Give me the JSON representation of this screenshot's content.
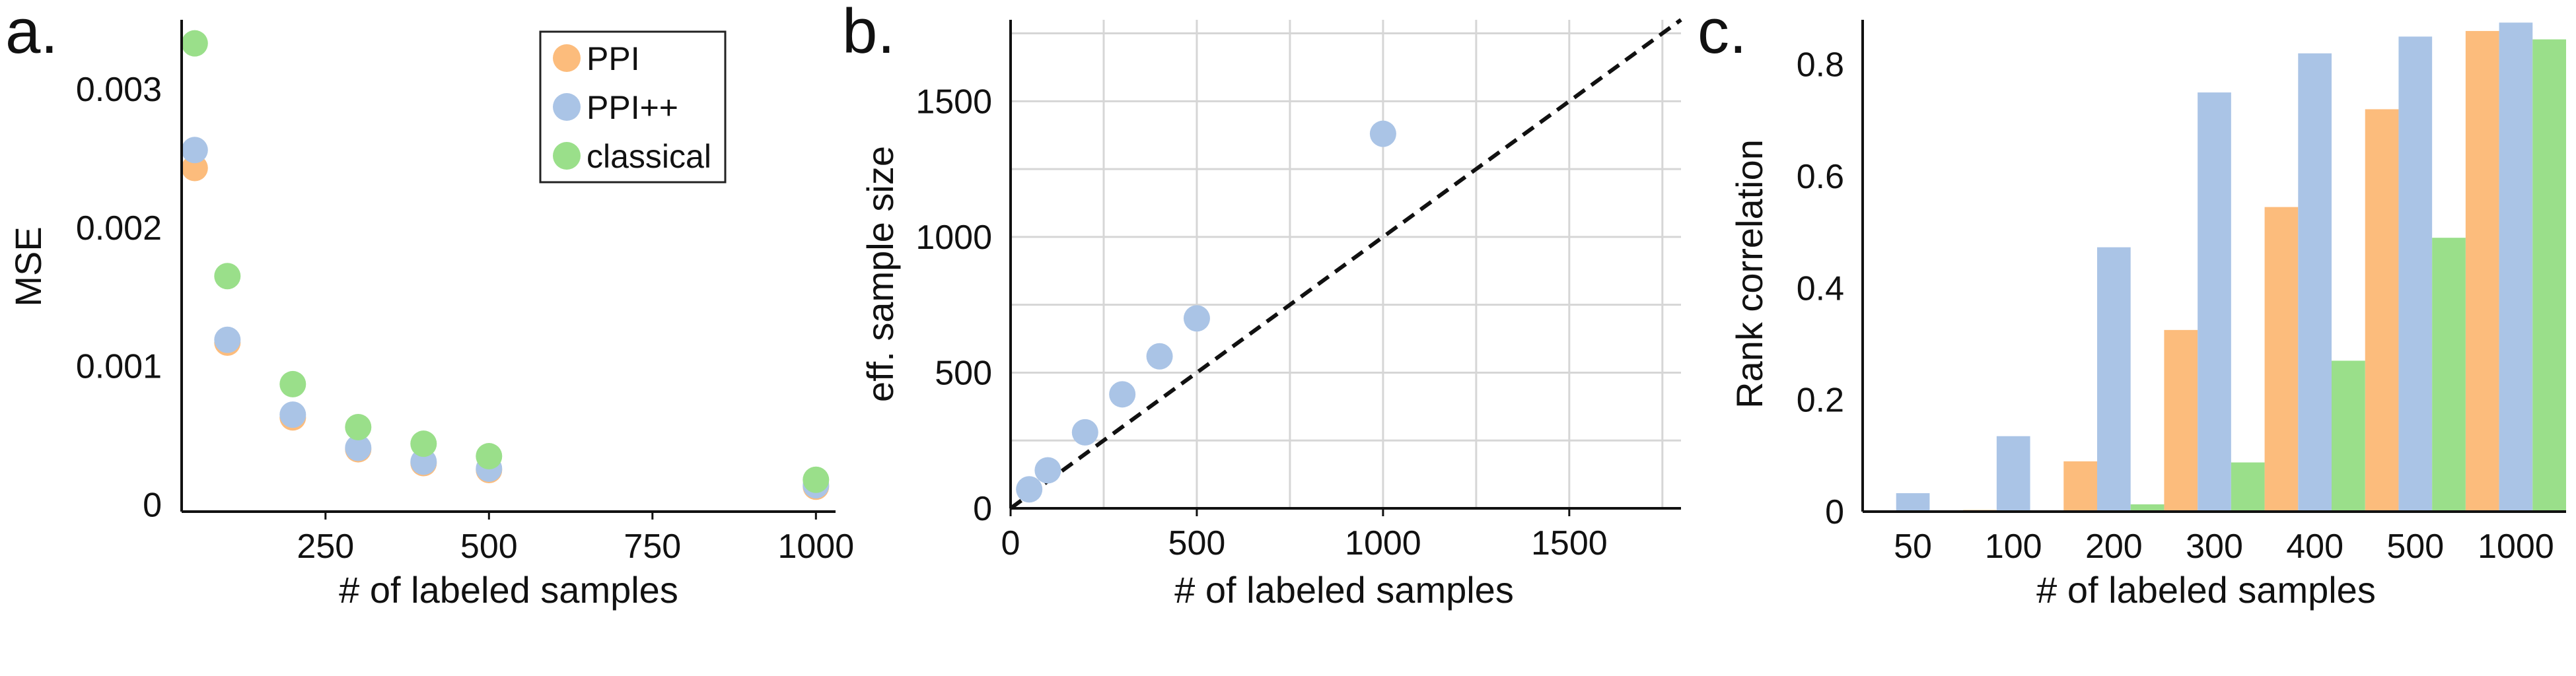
{
  "panels": {
    "a": {
      "letter": "a.",
      "xlabel": "# of labeled samples",
      "ylabel": "MSE"
    },
    "b": {
      "letter": "b.",
      "xlabel": "# of labeled samples",
      "ylabel": "eff. sample size"
    },
    "c": {
      "letter": "c.",
      "xlabel": "# of labeled samples",
      "ylabel": "Rank correlation"
    }
  },
  "legend": [
    {
      "label": "PPI",
      "color": "#fcbc7c"
    },
    {
      "label": "PPI++",
      "color": "#aac4e6"
    },
    {
      "label": "classical",
      "color": "#9adf8a"
    }
  ],
  "chart_data": [
    {
      "type": "scatter",
      "panel": "a",
      "xlabel": "# of labeled samples",
      "ylabel": "MSE",
      "xlim": [
        30,
        1030
      ],
      "ylim": [
        -5e-05,
        0.0035
      ],
      "xticks": [
        250,
        500,
        750,
        1000
      ],
      "yticks": [
        0,
        0.001,
        0.002,
        0.003
      ],
      "ytick_labels": [
        "0",
        "0.001",
        "0.002",
        "0.003"
      ],
      "legend_position": "top-right",
      "series": [
        {
          "name": "PPI",
          "color": "#fcbc7c",
          "x": [
            50,
            100,
            200,
            300,
            400,
            500,
            1000
          ],
          "y": [
            0.00243,
            0.00117,
            0.00063,
            0.0004,
            0.0003,
            0.00025,
            0.00013
          ]
        },
        {
          "name": "PPI++",
          "color": "#aac4e6",
          "x": [
            50,
            100,
            200,
            300,
            400,
            500,
            1000
          ],
          "y": [
            0.00256,
            0.00119,
            0.00065,
            0.00041,
            0.00031,
            0.00026,
            0.00014
          ]
        },
        {
          "name": "classical",
          "color": "#9adf8a",
          "x": [
            50,
            100,
            200,
            300,
            400,
            500,
            1000
          ],
          "y": [
            0.00333,
            0.00165,
            0.00087,
            0.00056,
            0.00044,
            0.00035,
            0.00018
          ]
        }
      ]
    },
    {
      "type": "scatter",
      "panel": "b",
      "xlabel": "# of labeled samples",
      "ylabel": "eff. sample size",
      "xlim": [
        0,
        1800
      ],
      "ylim": [
        0,
        1800
      ],
      "xticks": [
        0,
        500,
        1000,
        1500
      ],
      "yticks": [
        0,
        500,
        1000,
        1500
      ],
      "grid": true,
      "reference_line": "y = x (dashed)",
      "series": [
        {
          "name": "PPI++",
          "color": "#aac4e6",
          "x": [
            50,
            100,
            200,
            300,
            400,
            500,
            1000
          ],
          "y": [
            70,
            140,
            280,
            420,
            560,
            700,
            1380
          ]
        }
      ]
    },
    {
      "type": "bar",
      "panel": "c",
      "xlabel": "# of labeled samples",
      "ylabel": "Rank correlation",
      "categories": [
        "50",
        "100",
        "200",
        "300",
        "400",
        "500",
        "1000"
      ],
      "ylim": [
        0,
        0.88
      ],
      "yticks": [
        0,
        0.2,
        0.4,
        0.6,
        0.8
      ],
      "ytick_labels": [
        "0",
        "0.2",
        "0.4",
        "0.6",
        "0.8"
      ],
      "series": [
        {
          "name": "PPI",
          "color": "#fcbc7c",
          "values": [
            0.0,
            0.003,
            0.09,
            0.325,
            0.545,
            0.72,
            0.86
          ]
        },
        {
          "name": "PPI++",
          "color": "#aac4e6",
          "values": [
            0.033,
            0.135,
            0.473,
            0.75,
            0.82,
            0.85,
            0.875
          ]
        },
        {
          "name": "classical",
          "color": "#9adf8a",
          "values": [
            0.0,
            0.0,
            0.013,
            0.088,
            0.27,
            0.49,
            0.845
          ]
        }
      ]
    }
  ]
}
